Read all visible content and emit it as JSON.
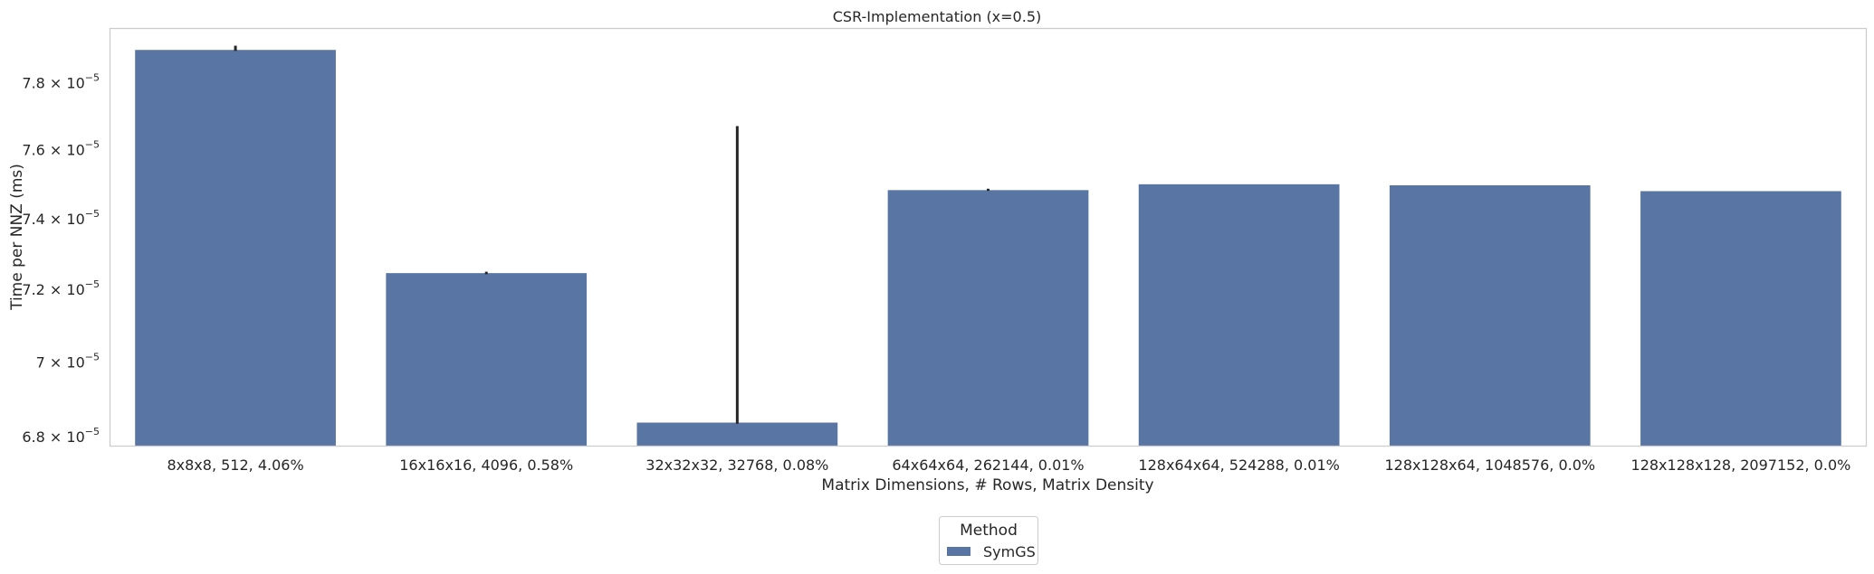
{
  "chart_data": {
    "type": "bar",
    "title": "CSR-Implementation (x=0.5)",
    "xlabel": "Matrix Dimensions, # Rows, Matrix Density",
    "ylabel": "Time per NNZ (ms)",
    "yscale": "log",
    "ylim": [
      6.775e-05,
      7.966e-05
    ],
    "yticks": [
      {
        "value": 6.8e-05,
        "mantissa": "6.8",
        "exponent": "−5"
      },
      {
        "value": 7e-05,
        "mantissa": "7",
        "exponent": "−5"
      },
      {
        "value": 7.2e-05,
        "mantissa": "7.2",
        "exponent": "−5"
      },
      {
        "value": 7.4e-05,
        "mantissa": "7.4",
        "exponent": "−5"
      },
      {
        "value": 7.6e-05,
        "mantissa": "7.6",
        "exponent": "−5"
      },
      {
        "value": 7.8e-05,
        "mantissa": "7.8",
        "exponent": "−5"
      }
    ],
    "tick_base": "10",
    "categories": [
      "8x8x8, 512, 4.06%",
      "16x16x16, 4096, 0.58%",
      "32x32x32, 32768, 0.08%",
      "64x64x64, 262144, 0.01%",
      "128x64x64, 524288, 0.01%",
      "128x128x64, 1048576, 0.0%",
      "128x128x128, 2097152, 0.0%"
    ],
    "series": [
      {
        "name": "SymGS",
        "color": "#5975a4",
        "values": [
          7.9e-05,
          7.245e-05,
          6.837e-05,
          7.482e-05,
          7.499e-05,
          7.496e-05,
          7.479e-05
        ],
        "error_low": [
          7.897e-05,
          7.242e-05,
          6.834e-05,
          7.48e-05,
          7.499e-05,
          7.496e-05,
          7.479e-05
        ],
        "error_high": [
          7.913e-05,
          7.249e-05,
          7.67e-05,
          7.486e-05,
          7.499e-05,
          7.496e-05,
          7.479e-05
        ]
      }
    ],
    "grid": false,
    "legend": {
      "title": "Method",
      "placement": "bottom-center"
    },
    "colors": {
      "bar": "#5975a4",
      "errorbar": "#262626",
      "frame": "#cccccc"
    }
  }
}
